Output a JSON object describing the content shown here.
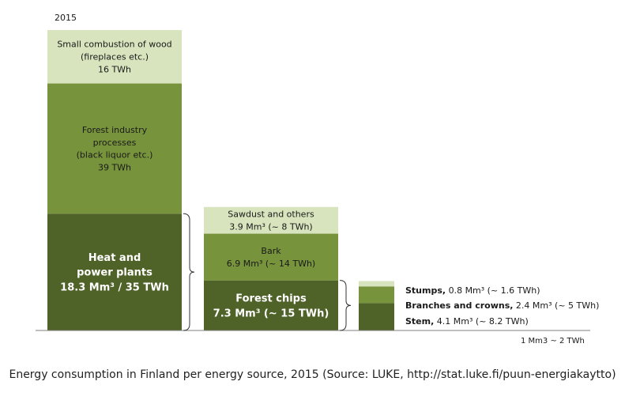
{
  "year_label": "2015",
  "note": "1 Mm3 ~ 2 TWh",
  "caption": "Energy consumption in Finland per energy source, 2015 (Source: LUKE, http://stat.luke.fi/puun-energiakaytto)",
  "colors": {
    "light": "#d7e4bd",
    "mid": "#77933c",
    "dark": "#4f6228",
    "axis": "#7f7f7f"
  },
  "chart_data": {
    "type": "bar",
    "layout": "stacked-breakdown",
    "unit": "TWh",
    "bars": [
      {
        "id": "total",
        "segments": [
          {
            "label_lines": [
              "Heat and",
              "power plants",
              "18.3 Mm³ / 35 TWh"
            ],
            "twh": 35,
            "mm3": 18.3,
            "color": "dark",
            "bold": true
          },
          {
            "label_lines": [
              "Forest industry",
              "processes",
              "(black liquor etc.)",
              "39 TWh"
            ],
            "twh": 39,
            "color": "mid",
            "bold": false
          },
          {
            "label_lines": [
              "Small combustion of wood",
              "(fireplaces etc.)",
              "16 TWh"
            ],
            "twh": 16,
            "color": "light",
            "bold": false
          }
        ]
      },
      {
        "id": "heat-and-power-breakdown",
        "segments": [
          {
            "label_lines": [
              "Forest chips",
              "7.3 Mm³ (~ 15 TWh)"
            ],
            "twh": 15,
            "mm3": 7.3,
            "color": "dark",
            "bold": true
          },
          {
            "label_lines": [
              "Bark",
              "6.9 Mm³ (~ 14 TWh)"
            ],
            "twh": 14,
            "mm3": 6.9,
            "color": "mid",
            "bold": false
          },
          {
            "label_lines": [
              "Sawdust and others",
              "3.9 Mm³ (~ 8 TWh)"
            ],
            "twh": 8,
            "mm3": 3.9,
            "color": "light",
            "bold": false
          }
        ]
      },
      {
        "id": "forest-chips-breakdown",
        "segments": [
          {
            "label_bold": "Stem,",
            "label_rest": " 4.1 Mm³ (~ 8.2 TWh)",
            "twh": 8.2,
            "mm3": 4.1,
            "color": "dark"
          },
          {
            "label_bold": "Branches and crowns,",
            "label_rest": " 2.4 Mm³ (~ 5 TWh)",
            "twh": 5,
            "mm3": 2.4,
            "color": "mid"
          },
          {
            "label_bold": "Stumps,",
            "label_rest": " 0.8 Mm³ (~ 1.6 TWh)",
            "twh": 1.6,
            "mm3": 0.8,
            "color": "light"
          }
        ]
      }
    ]
  }
}
